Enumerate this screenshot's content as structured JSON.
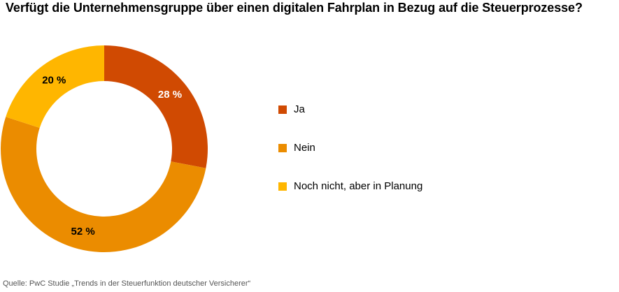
{
  "title": "Verfügt die Unternehmensgruppe über einen digitalen Fahrplan in Bezug auf die Steuerprozesse?",
  "source": "Quelle: PwC Studie „Trends in der Steuerfunktion deutscher Versicherer“",
  "chart_data": {
    "type": "pie",
    "style": "donut",
    "categories": [
      "Ja",
      "Nein",
      "Noch nicht, aber in Planung"
    ],
    "values": [
      28,
      52,
      20
    ],
    "labels": [
      "28 %",
      "52 %",
      "20 %"
    ],
    "colors": [
      "#d04a02",
      "#eb8c00",
      "#ffb600"
    ],
    "label_colors": [
      "#ffffff",
      "#000000",
      "#000000"
    ],
    "legend_position": "right"
  }
}
